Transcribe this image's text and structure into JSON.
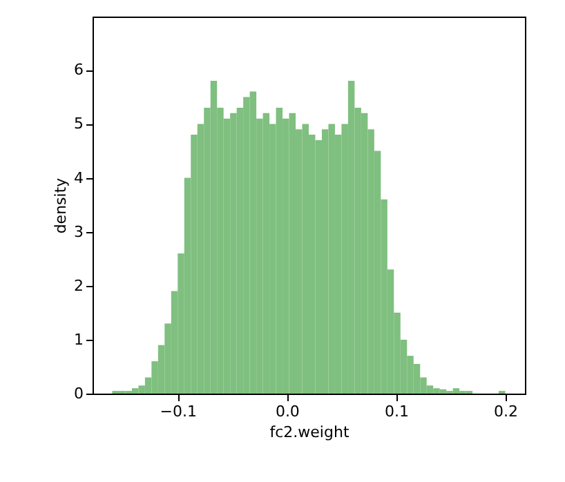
{
  "chart_data": {
    "type": "histogram",
    "xlabel": "fc2.weight",
    "ylabel": "density",
    "color": "#7fbf7f",
    "bins": [
      -0.16,
      -0.154,
      -0.148,
      -0.142,
      -0.136,
      -0.13,
      -0.124,
      -0.118,
      -0.112,
      -0.106,
      -0.1,
      -0.094,
      -0.088,
      -0.082,
      -0.076,
      -0.07,
      -0.064,
      -0.058,
      -0.052,
      -0.046,
      -0.04,
      -0.034,
      -0.028,
      -0.022,
      -0.016,
      -0.01,
      -0.004,
      0.002,
      0.008,
      0.014,
      0.02,
      0.026,
      0.032,
      0.038,
      0.044,
      0.05,
      0.056,
      0.062,
      0.068,
      0.074,
      0.08,
      0.086,
      0.092,
      0.098,
      0.104,
      0.11,
      0.116,
      0.122,
      0.128,
      0.134,
      0.14,
      0.146,
      0.152,
      0.158,
      0.164,
      0.17,
      0.176,
      0.182,
      0.188,
      0.194,
      0.2
    ],
    "values": [
      0.05,
      0.05,
      0.05,
      0.1,
      0.15,
      0.3,
      0.6,
      0.9,
      1.3,
      1.9,
      2.6,
      4.0,
      4.8,
      5.0,
      5.3,
      5.8,
      5.3,
      5.1,
      5.2,
      5.3,
      5.5,
      5.6,
      5.1,
      5.2,
      5.0,
      5.3,
      5.1,
      5.2,
      4.9,
      5.0,
      4.8,
      4.7,
      4.9,
      5.0,
      4.8,
      5.0,
      5.8,
      5.3,
      5.2,
      4.9,
      4.5,
      3.6,
      2.3,
      1.5,
      1.0,
      0.7,
      0.55,
      0.3,
      0.15,
      0.1,
      0.08,
      0.05,
      0.1,
      0.05,
      0.05,
      0,
      0,
      0,
      0,
      0.05
    ],
    "xlim": [
      -0.178,
      0.218
    ],
    "ylim": [
      0,
      6.99
    ],
    "xticks": [
      {
        "value": -0.1,
        "label": "−0.1"
      },
      {
        "value": 0,
        "label": "0.0"
      },
      {
        "value": 0.1,
        "label": "0.1"
      },
      {
        "value": 0.2,
        "label": "0.2"
      }
    ],
    "yticks": [
      0,
      1,
      2,
      3,
      4,
      5,
      6
    ],
    "grid": false
  }
}
